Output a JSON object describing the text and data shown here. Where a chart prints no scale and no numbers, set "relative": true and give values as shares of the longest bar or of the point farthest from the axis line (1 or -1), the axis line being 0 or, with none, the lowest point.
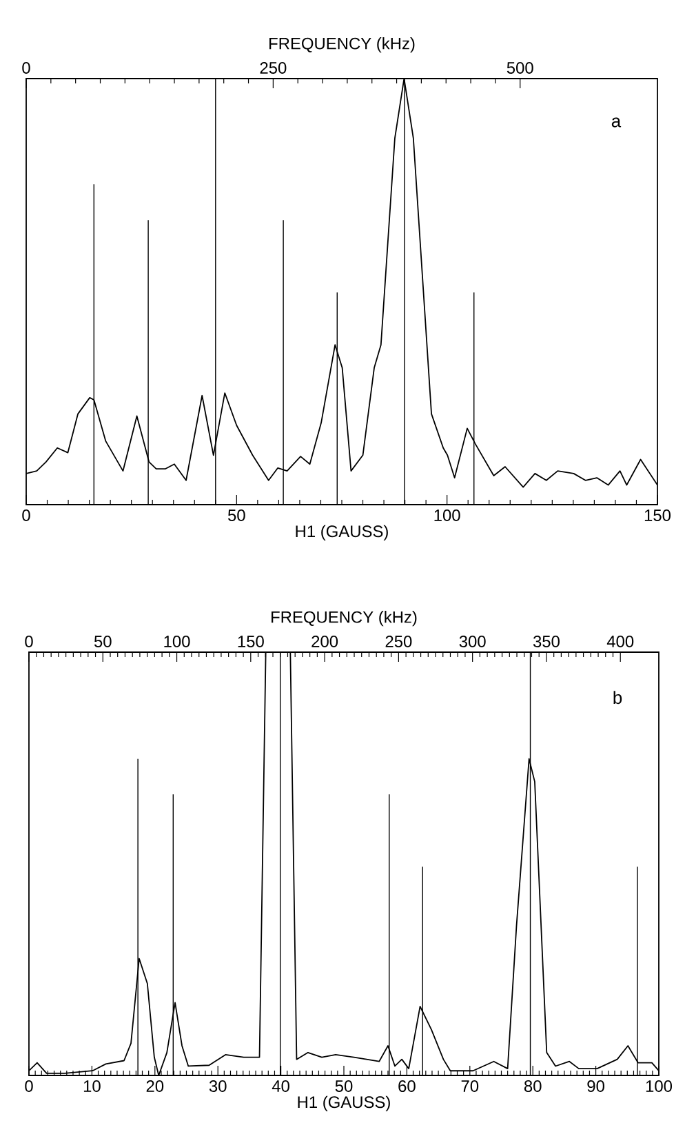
{
  "chart_data": [
    {
      "type": "line",
      "relative": true,
      "xlabel": "H1 (GAUSS)",
      "x2label": "FREQUENCY (kHz)",
      "xlim": [
        0,
        150
      ],
      "xticks": [
        0,
        50,
        100,
        150
      ],
      "x2lim": [
        0,
        639
      ],
      "x2ticks": [
        0,
        250,
        500
      ],
      "annotations": [
        "a"
      ],
      "series": [
        {
          "color": "#000000",
          "x": [
            0,
            2.5,
            4.7,
            7.4,
            9.9,
            12.3,
            15.1,
            16.1,
            18.9,
            23.0,
            26.3,
            29.2,
            30.9,
            33.1,
            35.2,
            38.0,
            41.8,
            44.5,
            47.2,
            50.0,
            53.8,
            57.6,
            59.8,
            62.0,
            65.2,
            67.4,
            70.1,
            73.4,
            75.1,
            77.2,
            80.0,
            82.7,
            84.3,
            87.6,
            89.8,
            92.0,
            96.3,
            99.1,
            100.1,
            101.8,
            104.8,
            106.7,
            111.1,
            113.8,
            118.1,
            120.9,
            123.6,
            126.3,
            130.1,
            132.9,
            135.6,
            138.3,
            141.1,
            142.7,
            146.0,
            150.0
          ],
          "values": [
            0.073,
            0.079,
            0.1,
            0.133,
            0.122,
            0.213,
            0.251,
            0.246,
            0.149,
            0.079,
            0.208,
            0.1,
            0.084,
            0.084,
            0.095,
            0.057,
            0.256,
            0.116,
            0.262,
            0.186,
            0.116,
            0.057,
            0.086,
            0.079,
            0.113,
            0.095,
            0.192,
            0.375,
            0.321,
            0.079,
            0.116,
            0.321,
            0.375,
            0.86,
            1.0,
            0.86,
            0.213,
            0.133,
            0.116,
            0.063,
            0.179,
            0.143,
            0.068,
            0.089,
            0.041,
            0.073,
            0.057,
            0.079,
            0.073,
            0.057,
            0.063,
            0.046,
            0.079,
            0.046,
            0.106,
            0.046
          ]
        },
        {
          "type": "bar",
          "color": "#000000",
          "x": [
            16.1,
            29.0,
            45.0,
            61.1,
            73.9,
            89.9,
            106.4
          ],
          "values": [
            0.752,
            0.668,
            1.0,
            0.668,
            0.498,
            1.0,
            0.498
          ]
        }
      ]
    },
    {
      "type": "line",
      "relative": true,
      "xlabel": "H1 (GAUSS)",
      "x2label": "FREQUENCY (kHz)",
      "xlim": [
        0,
        100
      ],
      "xticks": [
        0,
        10,
        20,
        30,
        40,
        50,
        60,
        70,
        80,
        90,
        100
      ],
      "x2lim": [
        0,
        426
      ],
      "x2ticks": [
        0,
        50,
        100,
        150,
        200,
        250,
        300,
        350,
        400
      ],
      "annotations": [
        "b"
      ],
      "series": [
        {
          "color": "#000000",
          "x": [
            0,
            1.3,
            2.8,
            5.7,
            10.1,
            12.2,
            15.1,
            16.2,
            17.5,
            18.8,
            19.9,
            20.6,
            21.9,
            23.2,
            24.3,
            25.3,
            28.6,
            31.2,
            34.1,
            36.6,
            37.6,
            41.5,
            42.5,
            44.3,
            46.5,
            48.7,
            51.6,
            55.6,
            57.0,
            58.1,
            59.2,
            60.3,
            62.1,
            63.9,
            65.8,
            66.9,
            70.5,
            73.8,
            76.0,
            77.4,
            79.4,
            80.3,
            82.2,
            83.6,
            85.8,
            87.3,
            90.2,
            93.4,
            95.1,
            96.7,
            98.9,
            100
          ],
          "values": [
            0.011,
            0.03,
            0.005,
            0.005,
            0.011,
            0.027,
            0.035,
            0.076,
            0.276,
            0.217,
            0.043,
            0.0,
            0.054,
            0.172,
            0.07,
            0.022,
            0.024,
            0.049,
            0.043,
            0.043,
            1.0,
            1.0,
            0.038,
            0.054,
            0.043,
            0.049,
            0.043,
            0.033,
            0.07,
            0.022,
            0.038,
            0.016,
            0.163,
            0.108,
            0.038,
            0.011,
            0.011,
            0.033,
            0.016,
            0.352,
            0.748,
            0.694,
            0.054,
            0.022,
            0.033,
            0.016,
            0.016,
            0.038,
            0.07,
            0.03,
            0.03,
            0.011
          ]
        },
        {
          "type": "bar",
          "color": "#000000",
          "x": [
            17.3,
            22.9,
            39.9,
            57.2,
            62.5,
            79.6,
            96.6
          ],
          "values": [
            0.748,
            0.664,
            1.0,
            0.664,
            0.493,
            1.0,
            0.493
          ]
        }
      ]
    }
  ]
}
